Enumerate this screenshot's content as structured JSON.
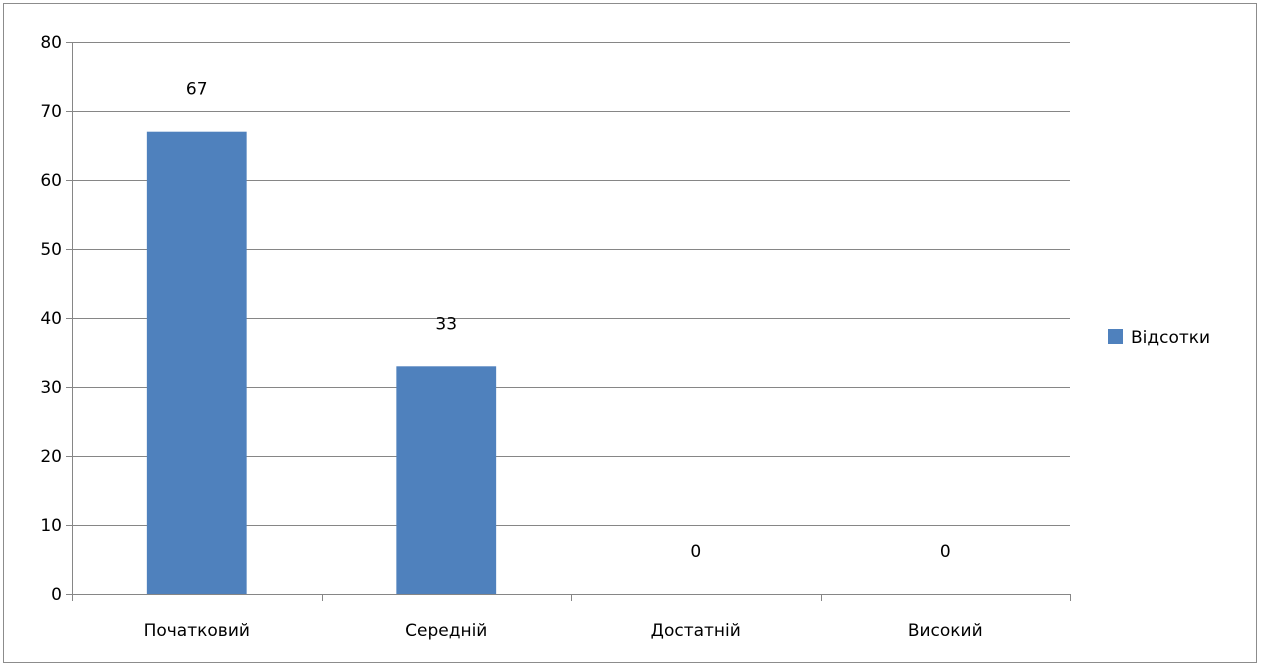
{
  "chart_data": {
    "type": "bar",
    "categories": [
      "Початковий",
      "Середній",
      "Достатній",
      "Високий"
    ],
    "series": [
      {
        "name": "Відсотки",
        "values": [
          67,
          33,
          0,
          0
        ],
        "color": "#4f81bd"
      }
    ],
    "data_labels": [
      "67",
      "33",
      "0",
      "0"
    ],
    "y_ticks": [
      "0",
      "10",
      "20",
      "30",
      "40",
      "50",
      "60",
      "70",
      "80"
    ],
    "ylim": [
      0,
      80
    ],
    "grid": true,
    "legend_position": "right",
    "colors": {
      "bar": "#4f81bd",
      "grid": "#868686",
      "axis": "#868686"
    }
  }
}
